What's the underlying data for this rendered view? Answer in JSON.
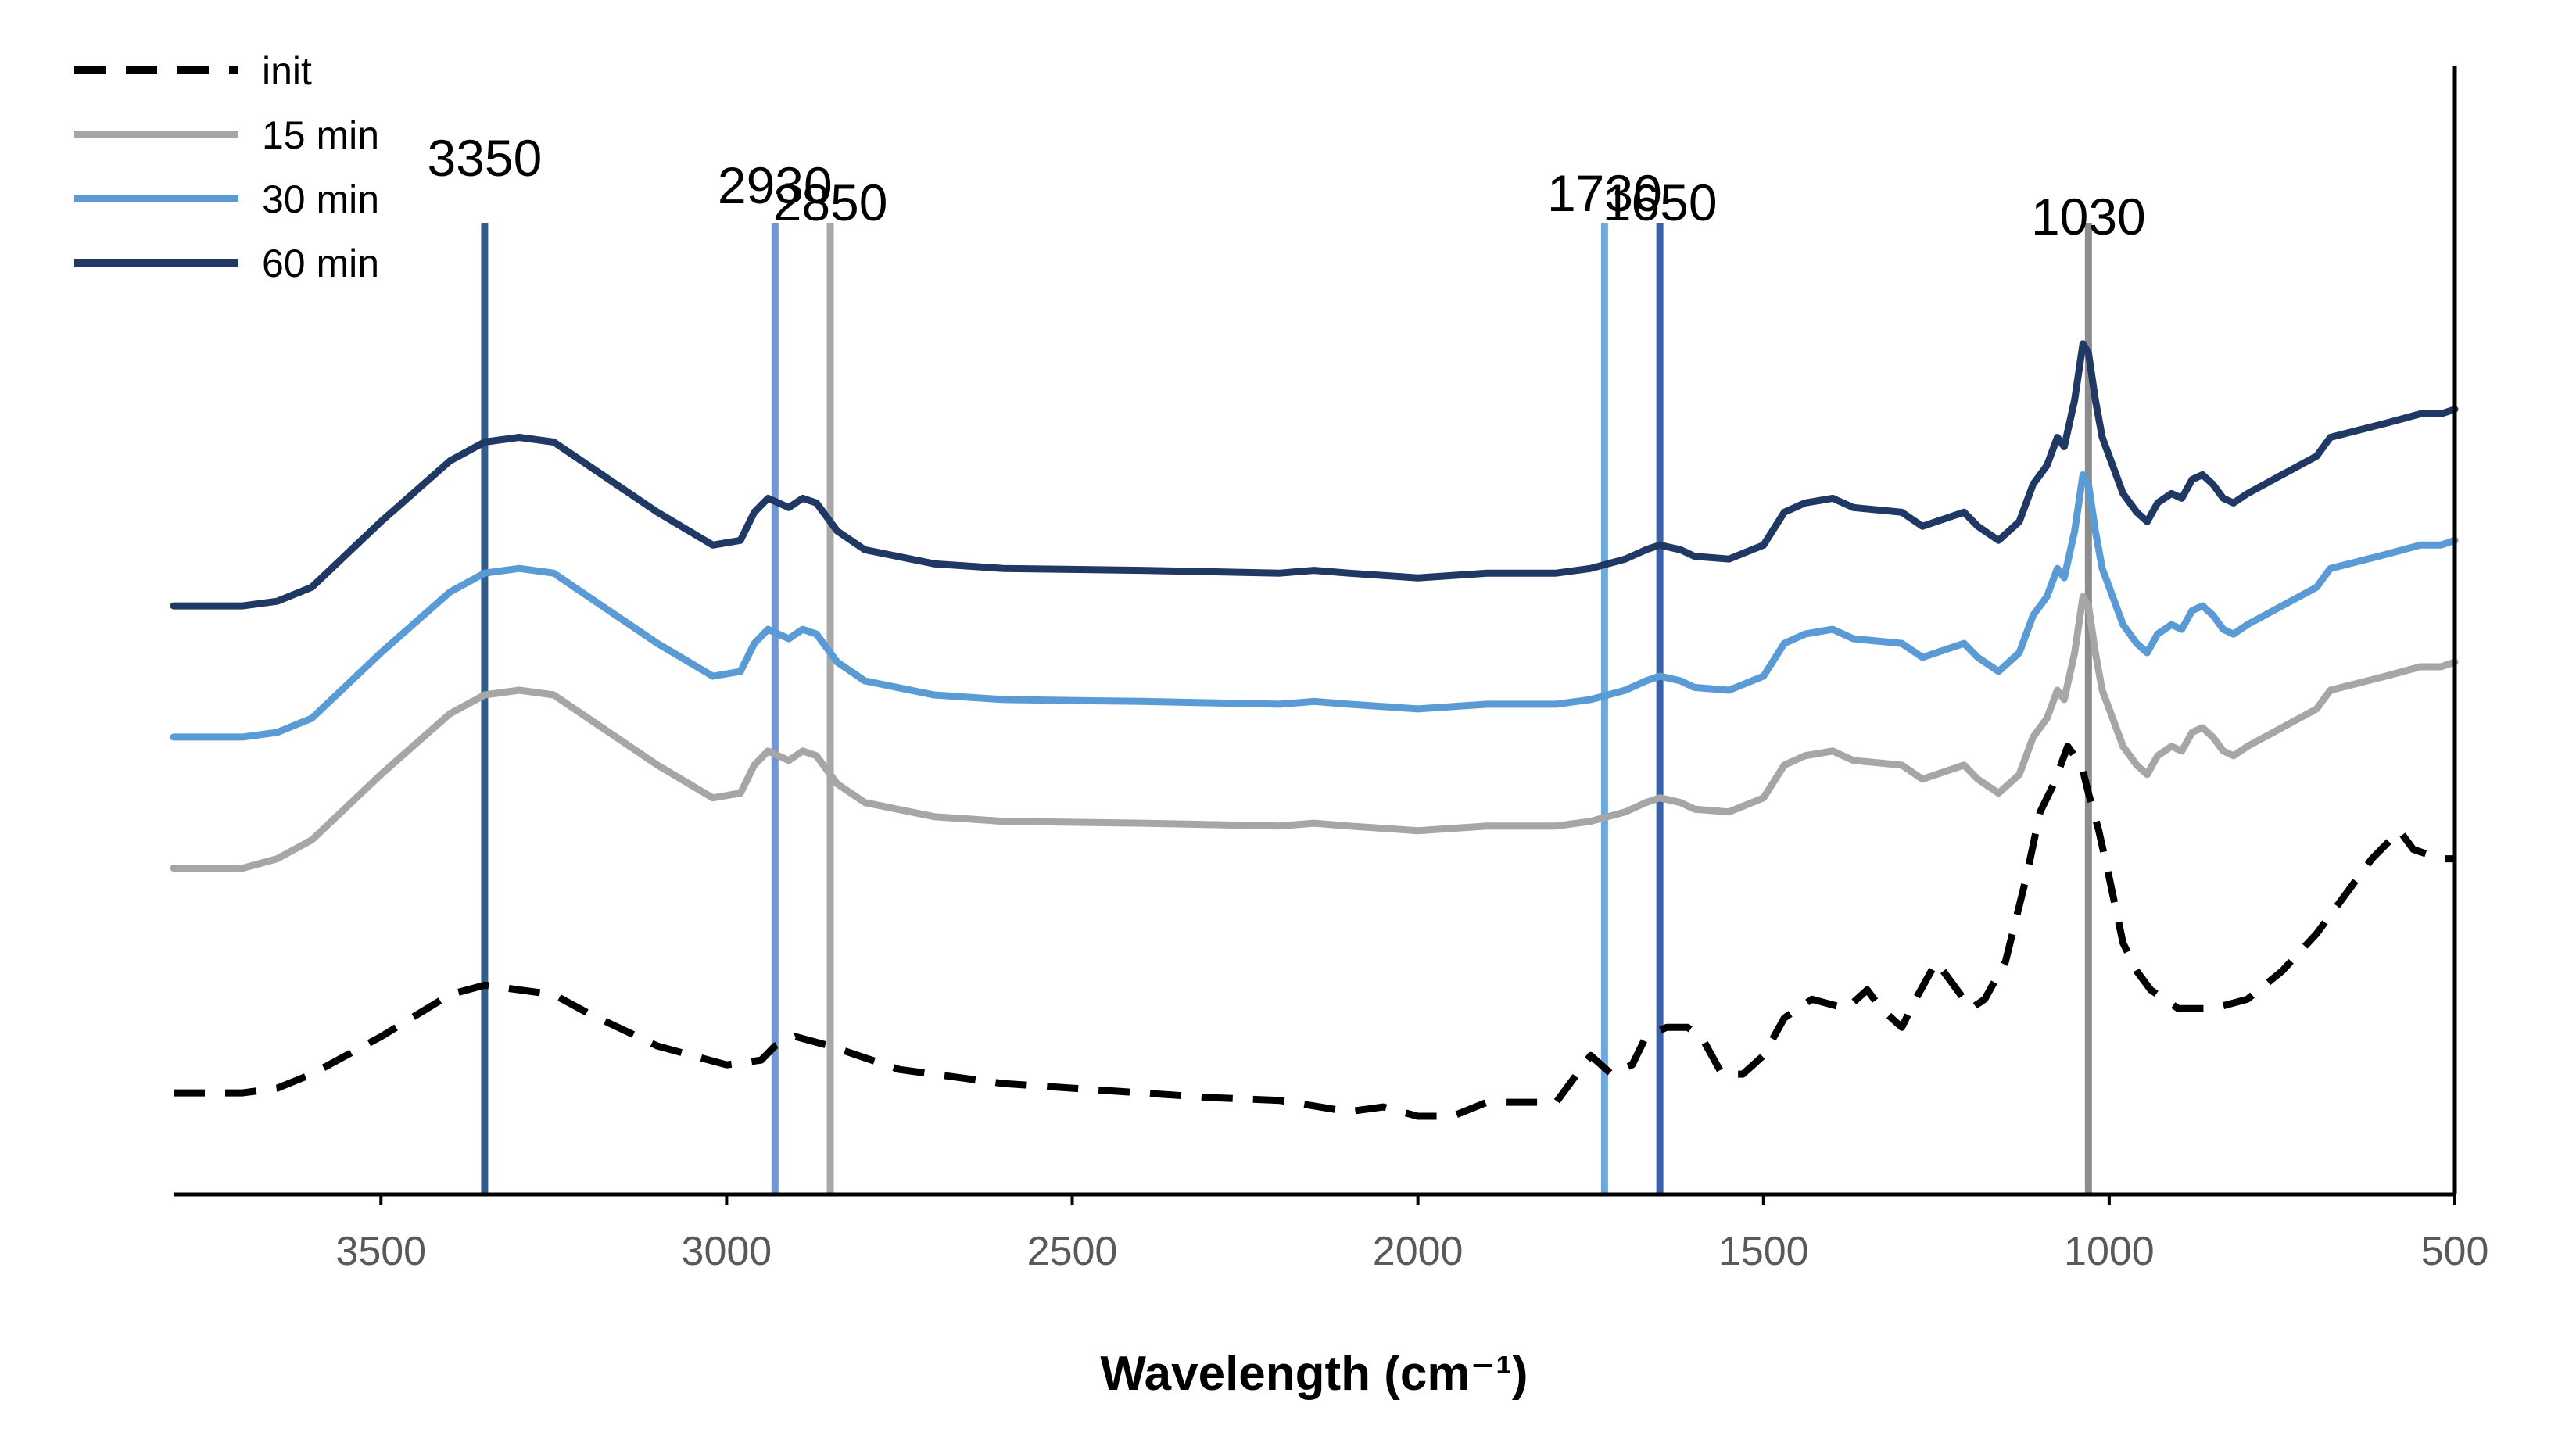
{
  "chart_data": {
    "type": "line",
    "title": "",
    "xlabel": "Wavelength (cm⁻¹)",
    "ylabel": "",
    "x_reversed": true,
    "xlim": [
      3800,
      500
    ],
    "ylim": [
      0,
      100
    ],
    "xticks": [
      3500,
      3000,
      2500,
      2000,
      1500,
      1000,
      500
    ],
    "legend_position": "top-left",
    "reference_lines": [
      {
        "value": 3350,
        "label": "3350",
        "color": "#2f5d8c"
      },
      {
        "value": 2930,
        "label": "2930",
        "color": "#6f96d6"
      },
      {
        "value": 2850,
        "label": "2850",
        "color": "#a8a8a8"
      },
      {
        "value": 1730,
        "label": "1730",
        "color": "#6fa8dc"
      },
      {
        "value": 1650,
        "label": "1650",
        "color": "#3a62a8"
      },
      {
        "value": 1030,
        "label": "1030",
        "color": "#8c8c8c"
      }
    ],
    "series": [
      {
        "name": "init",
        "color": "#000000",
        "style": "dashed",
        "points": [
          [
            3800,
            5
          ],
          [
            3700,
            5
          ],
          [
            3650,
            5.5
          ],
          [
            3600,
            7
          ],
          [
            3500,
            11
          ],
          [
            3400,
            15.5
          ],
          [
            3350,
            16.5
          ],
          [
            3300,
            16
          ],
          [
            3250,
            15.5
          ],
          [
            3200,
            13.5
          ],
          [
            3100,
            10
          ],
          [
            3000,
            8
          ],
          [
            2950,
            8.5
          ],
          [
            2930,
            10
          ],
          [
            2900,
            11
          ],
          [
            2850,
            10
          ],
          [
            2750,
            7.5
          ],
          [
            2600,
            6
          ],
          [
            2400,
            5
          ],
          [
            2300,
            4.5
          ],
          [
            2200,
            4.2
          ],
          [
            2100,
            3
          ],
          [
            2050,
            3.5
          ],
          [
            2000,
            2.5
          ],
          [
            1950,
            2.5
          ],
          [
            1900,
            4
          ],
          [
            1800,
            4
          ],
          [
            1780,
            6
          ],
          [
            1750,
            9
          ],
          [
            1720,
            7
          ],
          [
            1690,
            8
          ],
          [
            1670,
            11
          ],
          [
            1640,
            12
          ],
          [
            1610,
            12
          ],
          [
            1590,
            11
          ],
          [
            1560,
            7
          ],
          [
            1530,
            7
          ],
          [
            1500,
            9
          ],
          [
            1470,
            13
          ],
          [
            1430,
            15
          ],
          [
            1380,
            14
          ],
          [
            1350,
            16
          ],
          [
            1330,
            14
          ],
          [
            1300,
            12
          ],
          [
            1280,
            15
          ],
          [
            1250,
            19
          ],
          [
            1220,
            16
          ],
          [
            1200,
            14
          ],
          [
            1180,
            15
          ],
          [
            1150,
            19
          ],
          [
            1120,
            28
          ],
          [
            1100,
            35
          ],
          [
            1080,
            38
          ],
          [
            1060,
            42
          ],
          [
            1040,
            40
          ],
          [
            1030,
            37
          ],
          [
            1015,
            33
          ],
          [
            1000,
            28
          ],
          [
            980,
            21
          ],
          [
            960,
            18
          ],
          [
            940,
            16
          ],
          [
            900,
            14
          ],
          [
            850,
            14
          ],
          [
            800,
            15
          ],
          [
            750,
            18
          ],
          [
            700,
            22
          ],
          [
            650,
            27
          ],
          [
            620,
            30
          ],
          [
            580,
            33
          ],
          [
            560,
            31
          ],
          [
            520,
            30
          ],
          [
            500,
            30
          ]
        ]
      },
      {
        "name": "15 min",
        "color": "#a6a6a6",
        "style": "solid",
        "points": [
          [
            3800,
            29
          ],
          [
            3700,
            29
          ],
          [
            3650,
            30
          ],
          [
            3600,
            32
          ],
          [
            3500,
            39
          ],
          [
            3400,
            45.5
          ],
          [
            3350,
            47.5
          ],
          [
            3300,
            48
          ],
          [
            3250,
            47.5
          ],
          [
            3200,
            45
          ],
          [
            3100,
            40
          ],
          [
            3020,
            36.5
          ],
          [
            2980,
            37
          ],
          [
            2960,
            40
          ],
          [
            2940,
            41.5
          ],
          [
            2910,
            40.5
          ],
          [
            2890,
            41.5
          ],
          [
            2870,
            41
          ],
          [
            2840,
            38
          ],
          [
            2800,
            36
          ],
          [
            2700,
            34.5
          ],
          [
            2600,
            34
          ],
          [
            2400,
            33.8
          ],
          [
            2200,
            33.5
          ],
          [
            2150,
            33.8
          ],
          [
            2100,
            33.5
          ],
          [
            2000,
            33
          ],
          [
            1900,
            33.5
          ],
          [
            1800,
            33.5
          ],
          [
            1750,
            34
          ],
          [
            1700,
            35
          ],
          [
            1670,
            36
          ],
          [
            1650,
            36.5
          ],
          [
            1620,
            36
          ],
          [
            1600,
            35.3
          ],
          [
            1550,
            35
          ],
          [
            1500,
            36.5
          ],
          [
            1470,
            40
          ],
          [
            1440,
            41
          ],
          [
            1400,
            41.5
          ],
          [
            1370,
            40.5
          ],
          [
            1300,
            40
          ],
          [
            1270,
            38.5
          ],
          [
            1230,
            39.5
          ],
          [
            1210,
            40
          ],
          [
            1190,
            38.5
          ],
          [
            1160,
            37
          ],
          [
            1130,
            39
          ],
          [
            1110,
            43
          ],
          [
            1090,
            45
          ],
          [
            1075,
            48
          ],
          [
            1065,
            47
          ],
          [
            1050,
            52
          ],
          [
            1038,
            58
          ],
          [
            1030,
            57
          ],
          [
            1020,
            52
          ],
          [
            1010,
            48
          ],
          [
            1000,
            46
          ],
          [
            980,
            42
          ],
          [
            960,
            40
          ],
          [
            945,
            39
          ],
          [
            930,
            41
          ],
          [
            910,
            42
          ],
          [
            895,
            41.5
          ],
          [
            880,
            43.5
          ],
          [
            865,
            44
          ],
          [
            850,
            43
          ],
          [
            835,
            41.5
          ],
          [
            820,
            41
          ],
          [
            800,
            42
          ],
          [
            700,
            46
          ],
          [
            680,
            48
          ],
          [
            600,
            49.5
          ],
          [
            550,
            50.5
          ],
          [
            520,
            50.5
          ],
          [
            500,
            51
          ]
        ]
      },
      {
        "name": "30 min",
        "color": "#5b9bd5",
        "style": "solid",
        "points": [
          [
            3800,
            43
          ],
          [
            3700,
            43
          ],
          [
            3650,
            43.5
          ],
          [
            3600,
            45
          ],
          [
            3500,
            52
          ],
          [
            3400,
            58.5
          ],
          [
            3350,
            60.5
          ],
          [
            3300,
            61
          ],
          [
            3250,
            60.5
          ],
          [
            3200,
            58
          ],
          [
            3100,
            53
          ],
          [
            3020,
            49.5
          ],
          [
            2980,
            50
          ],
          [
            2960,
            53
          ],
          [
            2940,
            54.5
          ],
          [
            2910,
            53.5
          ],
          [
            2890,
            54.5
          ],
          [
            2870,
            54
          ],
          [
            2840,
            51
          ],
          [
            2800,
            49
          ],
          [
            2700,
            47.5
          ],
          [
            2600,
            47
          ],
          [
            2400,
            46.8
          ],
          [
            2200,
            46.5
          ],
          [
            2150,
            46.8
          ],
          [
            2100,
            46.5
          ],
          [
            2000,
            46
          ],
          [
            1900,
            46.5
          ],
          [
            1800,
            46.5
          ],
          [
            1750,
            47
          ],
          [
            1700,
            48
          ],
          [
            1670,
            49
          ],
          [
            1650,
            49.5
          ],
          [
            1620,
            49
          ],
          [
            1600,
            48.3
          ],
          [
            1550,
            48
          ],
          [
            1500,
            49.5
          ],
          [
            1470,
            53
          ],
          [
            1440,
            54
          ],
          [
            1400,
            54.5
          ],
          [
            1370,
            53.5
          ],
          [
            1300,
            53
          ],
          [
            1270,
            51.5
          ],
          [
            1230,
            52.5
          ],
          [
            1210,
            53
          ],
          [
            1190,
            51.5
          ],
          [
            1160,
            50
          ],
          [
            1130,
            52
          ],
          [
            1110,
            56
          ],
          [
            1090,
            58
          ],
          [
            1075,
            61
          ],
          [
            1065,
            60
          ],
          [
            1050,
            65
          ],
          [
            1038,
            71
          ],
          [
            1030,
            70
          ],
          [
            1020,
            65
          ],
          [
            1010,
            61
          ],
          [
            1000,
            59
          ],
          [
            980,
            55
          ],
          [
            960,
            53
          ],
          [
            945,
            52
          ],
          [
            930,
            54
          ],
          [
            910,
            55
          ],
          [
            895,
            54.5
          ],
          [
            880,
            56.5
          ],
          [
            865,
            57
          ],
          [
            850,
            56
          ],
          [
            835,
            54.5
          ],
          [
            820,
            54
          ],
          [
            800,
            55
          ],
          [
            700,
            59
          ],
          [
            680,
            61
          ],
          [
            600,
            62.5
          ],
          [
            550,
            63.5
          ],
          [
            520,
            63.5
          ],
          [
            500,
            64
          ]
        ]
      },
      {
        "name": "60 min",
        "color": "#203864",
        "style": "solid",
        "points": [
          [
            3800,
            57
          ],
          [
            3700,
            57
          ],
          [
            3650,
            57.5
          ],
          [
            3600,
            59
          ],
          [
            3500,
            66
          ],
          [
            3400,
            72.5
          ],
          [
            3350,
            74.5
          ],
          [
            3300,
            75
          ],
          [
            3250,
            74.5
          ],
          [
            3200,
            72
          ],
          [
            3100,
            67
          ],
          [
            3020,
            63.5
          ],
          [
            2980,
            64
          ],
          [
            2960,
            67
          ],
          [
            2940,
            68.5
          ],
          [
            2910,
            67.5
          ],
          [
            2890,
            68.5
          ],
          [
            2870,
            68
          ],
          [
            2840,
            65
          ],
          [
            2800,
            63
          ],
          [
            2700,
            61.5
          ],
          [
            2600,
            61
          ],
          [
            2400,
            60.8
          ],
          [
            2200,
            60.5
          ],
          [
            2150,
            60.8
          ],
          [
            2100,
            60.5
          ],
          [
            2000,
            60
          ],
          [
            1900,
            60.5
          ],
          [
            1800,
            60.5
          ],
          [
            1750,
            61
          ],
          [
            1700,
            62
          ],
          [
            1670,
            63
          ],
          [
            1650,
            63.5
          ],
          [
            1620,
            63
          ],
          [
            1600,
            62.3
          ],
          [
            1550,
            62
          ],
          [
            1500,
            63.5
          ],
          [
            1470,
            67
          ],
          [
            1440,
            68
          ],
          [
            1400,
            68.5
          ],
          [
            1370,
            67.5
          ],
          [
            1300,
            67
          ],
          [
            1270,
            65.5
          ],
          [
            1230,
            66.5
          ],
          [
            1210,
            67
          ],
          [
            1190,
            65.5
          ],
          [
            1160,
            64
          ],
          [
            1130,
            66
          ],
          [
            1110,
            70
          ],
          [
            1090,
            72
          ],
          [
            1075,
            75
          ],
          [
            1065,
            74
          ],
          [
            1050,
            79
          ],
          [
            1038,
            85
          ],
          [
            1030,
            84
          ],
          [
            1020,
            79
          ],
          [
            1010,
            75
          ],
          [
            1000,
            73
          ],
          [
            980,
            69
          ],
          [
            960,
            67
          ],
          [
            945,
            66
          ],
          [
            930,
            68
          ],
          [
            910,
            69
          ],
          [
            895,
            68.5
          ],
          [
            880,
            70.5
          ],
          [
            865,
            71
          ],
          [
            850,
            70
          ],
          [
            835,
            68.5
          ],
          [
            820,
            68
          ],
          [
            800,
            69
          ],
          [
            700,
            73
          ],
          [
            680,
            75
          ],
          [
            600,
            76.5
          ],
          [
            550,
            77.5
          ],
          [
            520,
            77.5
          ],
          [
            500,
            78
          ]
        ]
      }
    ]
  }
}
